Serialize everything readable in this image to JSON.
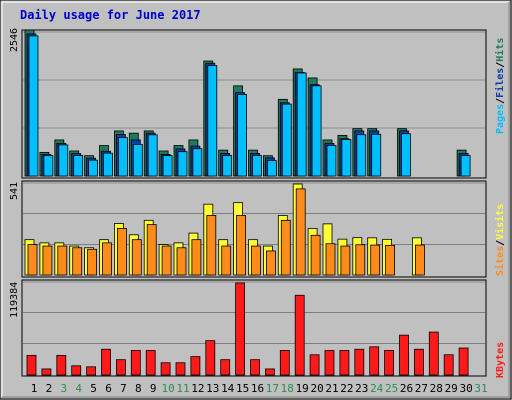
{
  "chart_data": [
    {
      "type": "bar",
      "title": "Daily usage for June 2017",
      "x": [
        "1",
        "2",
        "3",
        "4",
        "5",
        "6",
        "7",
        "8",
        "9",
        "10",
        "11",
        "12",
        "13",
        "14",
        "15",
        "16",
        "17",
        "18",
        "19",
        "20",
        "21",
        "22",
        "23",
        "24",
        "25",
        "26",
        "27",
        "28",
        "29",
        "30",
        "31"
      ],
      "weekend_days": [
        "3",
        "4",
        "10",
        "11",
        "17",
        "18",
        "24",
        "25",
        "31"
      ],
      "y_max_label": "2546",
      "ylim": [
        0,
        2546
      ],
      "legend": [
        "Pages",
        "Files",
        "Hits"
      ],
      "series": [
        {
          "name": "Hits",
          "color": "#1f7a5c",
          "values": [
            2546,
            412,
            629,
            436,
            354,
            531,
            786,
            747,
            786,
            436,
            531,
            629,
            2005,
            451,
            1572,
            451,
            354,
            1337,
            1867,
            1710,
            629,
            707,
            825,
            825,
            0,
            825,
            0,
            0,
            0,
            451,
            0
          ]
        },
        {
          "name": "Files",
          "color": "#0a3ea8",
          "values": [
            2477,
            377,
            570,
            390,
            311,
            432,
            723,
            629,
            747,
            377,
            472,
            521,
            1966,
            393,
            1454,
            393,
            315,
            1277,
            1808,
            1592,
            570,
            649,
            786,
            786,
            0,
            786,
            0,
            0,
            0,
            393,
            0
          ]
        },
        {
          "name": "Pages",
          "color": "#00bfff",
          "values": [
            2443,
            355,
            542,
            357,
            276,
            398,
            669,
            550,
            718,
            355,
            424,
            476,
            1926,
            357,
            1422,
            357,
            270,
            1253,
            1797,
            1573,
            531,
            637,
            720,
            727,
            0,
            737,
            0,
            0,
            0,
            357,
            0
          ]
        }
      ]
    },
    {
      "type": "bar",
      "y_max_label": "541",
      "ylim": [
        0,
        541
      ],
      "legend": [
        "Sites",
        "Visits"
      ],
      "series": [
        {
          "name": "Visits",
          "color": "#ffff33",
          "values": [
            210,
            191,
            191,
            172,
            162,
            210,
            306,
            239,
            325,
            181,
            191,
            249,
            421,
            210,
            430,
            210,
            172,
            354,
            541,
            277,
            304,
            213,
            222,
            221,
            212,
            0,
            221,
            0,
            0,
            0,
            0
          ]
        },
        {
          "name": "Sites",
          "color": "#ff8c1a",
          "values": [
            181,
            172,
            172,
            162,
            153,
            191,
            277,
            210,
            300,
            172,
            162,
            210,
            354,
            172,
            354,
            172,
            143,
            325,
            512,
            236,
            186,
            172,
            180,
            178,
            176,
            0,
            178,
            0,
            0,
            0,
            0
          ]
        }
      ]
    },
    {
      "type": "bar",
      "y_max_label": "119384",
      "ylim": [
        0,
        119384
      ],
      "legend": [
        "KBytes"
      ],
      "series": [
        {
          "name": "KBytes",
          "color": "#ff1a1a",
          "values": [
            25461,
            7876,
            25461,
            11939,
            10609,
            33408,
            19892,
            31833,
            31833,
            15914,
            15914,
            23867,
            44561,
            19892,
            119384,
            19892,
            7876,
            31833,
            103455,
            26259,
            31833,
            31833,
            33408,
            36591,
            31833,
            51727,
            33408,
            55702,
            26259,
            35005,
            0
          ]
        }
      ]
    }
  ]
}
